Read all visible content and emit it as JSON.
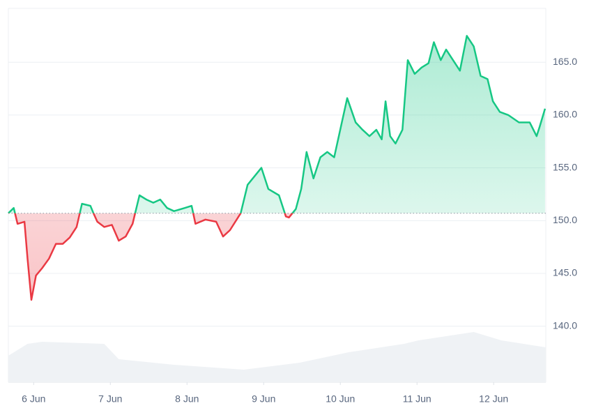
{
  "chart_data": {
    "type": "baseline-line",
    "x": [
      5.67,
      5.74,
      5.79,
      5.88,
      5.92,
      5.97,
      6.03,
      6.11,
      6.2,
      6.29,
      6.38,
      6.47,
      6.56,
      6.63,
      6.74,
      6.78,
      6.83,
      6.92,
      7.02,
      7.11,
      7.2,
      7.29,
      7.38,
      7.47,
      7.56,
      7.65,
      7.74,
      7.83,
      7.97,
      8.06,
      8.11,
      8.24,
      8.38,
      8.47,
      8.56,
      8.7,
      8.79,
      8.97,
      9.06,
      9.2,
      9.29,
      9.33,
      9.42,
      9.49,
      9.56,
      9.65,
      9.74,
      9.83,
      9.92,
      10.02,
      10.09,
      10.2,
      10.29,
      10.38,
      10.47,
      10.54,
      10.59,
      10.65,
      10.72,
      10.81,
      10.88,
      10.97,
      11.06,
      11.15,
      11.22,
      11.31,
      11.38,
      11.47,
      11.56,
      11.65,
      11.74,
      11.83,
      11.92,
      11.99,
      12.08,
      12.19,
      12.33,
      12.47,
      12.56,
      12.6,
      12.67
    ],
    "values": [
      150.7,
      151.2,
      149.7,
      149.9,
      146.4,
      142.5,
      144.8,
      145.5,
      146.4,
      147.8,
      147.8,
      148.4,
      149.4,
      151.6,
      151.4,
      150.7,
      149.9,
      149.4,
      149.6,
      148.1,
      148.5,
      149.7,
      152.4,
      152.0,
      151.7,
      152.0,
      151.2,
      150.9,
      151.2,
      151.4,
      149.7,
      150.1,
      149.9,
      148.5,
      149.1,
      150.7,
      153.4,
      155.0,
      153.0,
      152.4,
      150.4,
      150.3,
      151.1,
      153.0,
      156.5,
      154.0,
      156.0,
      156.5,
      156.0,
      159.3,
      161.6,
      159.3,
      158.6,
      158.0,
      158.6,
      157.7,
      161.3,
      158.0,
      157.3,
      158.6,
      165.2,
      163.9,
      164.5,
      164.9,
      166.9,
      165.2,
      166.2,
      165.2,
      164.2,
      167.5,
      166.5,
      163.7,
      163.4,
      161.3,
      160.3,
      160.0,
      159.3,
      159.3,
      158.0,
      158.9,
      160.6
    ],
    "baseline": 150.7,
    "up_color": "#16c784",
    "down_color": "#ea3943",
    "volume": {
      "color": "#eff2f5",
      "x": [
        5.67,
        5.92,
        6.11,
        6.92,
        7.11,
        7.83,
        8.74,
        9.47,
        10.11,
        10.83,
        11.02,
        11.74,
        12.1,
        12.68
      ],
      "values": [
        38,
        55,
        58,
        55,
        33,
        25,
        18,
        28,
        43,
        55,
        60,
        72,
        60,
        50
      ]
    },
    "y2lim": [
      0,
      100
    ],
    "xlim": [
      5.67,
      12.68
    ],
    "xticks": [
      {
        "value": 6,
        "label": "6 Jun"
      },
      {
        "value": 7,
        "label": "7 Jun"
      },
      {
        "value": 8,
        "label": "8 Jun"
      },
      {
        "value": 9,
        "label": "9 Jun"
      },
      {
        "value": 10,
        "label": "10 Jun"
      },
      {
        "value": 11,
        "label": "11 Jun"
      },
      {
        "value": 12,
        "label": "12 Jun"
      }
    ],
    "ylim": [
      134.7,
      170.1
    ],
    "yticks": [
      {
        "value": 140,
        "label": "140.0"
      },
      {
        "value": 145,
        "label": "145.0"
      },
      {
        "value": 150,
        "label": "150.0"
      },
      {
        "value": 155,
        "label": "155.0"
      },
      {
        "value": 160,
        "label": "160.0"
      },
      {
        "value": 165,
        "label": "165.0"
      }
    ],
    "grid": true
  }
}
